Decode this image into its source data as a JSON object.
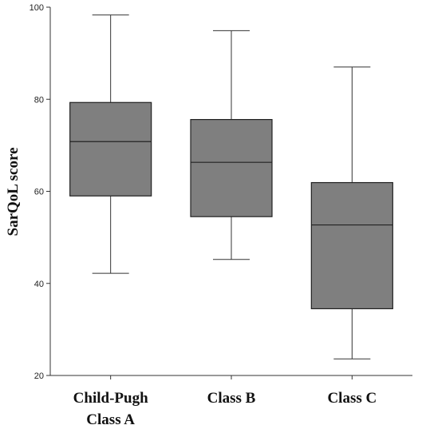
{
  "chart_data": {
    "type": "boxplot",
    "ylabel": "SarQoL score",
    "xlabel": "",
    "ylim": [
      20,
      100
    ],
    "yticks": [
      20,
      40,
      60,
      80,
      100
    ],
    "grid": false,
    "legend": "none",
    "box_color": "#7f7f7f",
    "categories": [
      [
        "Child-Pugh",
        "Class A"
      ],
      [
        "Class B"
      ],
      [
        "Class C"
      ]
    ],
    "boxes": [
      {
        "min": 42.2,
        "q1": 59.0,
        "median": 70.8,
        "q3": 79.3,
        "max": 98.3
      },
      {
        "min": 45.2,
        "q1": 54.5,
        "median": 66.3,
        "q3": 75.6,
        "max": 94.9
      },
      {
        "min": 23.6,
        "q1": 34.5,
        "median": 52.7,
        "q3": 61.9,
        "max": 87.0
      }
    ]
  }
}
